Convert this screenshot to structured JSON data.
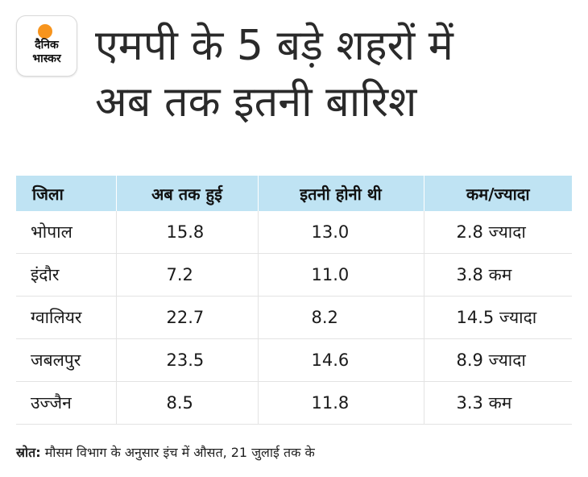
{
  "logo": {
    "line1": "दैनिक",
    "line2": "भास्कर",
    "accent_color": "#f7941d"
  },
  "title": {
    "line1": "एमपी के 5 बड़े शहरों में",
    "line2": "अब तक इतनी बारिश"
  },
  "table": {
    "header_bg": "#bfe3f3",
    "columns": [
      "जिला",
      "अब तक हुई",
      "इतनी होनी थी",
      "कम/ज्यादा"
    ],
    "rows": [
      [
        "भोपाल",
        "15.8",
        "13.0",
        "2.8 ज्यादा"
      ],
      [
        "इंदौर",
        "7.2",
        "11.0",
        "3.8 कम"
      ],
      [
        "ग्वालियर",
        "22.7",
        "8.2",
        "14.5 ज्यादा"
      ],
      [
        "जबलपुर",
        "23.5",
        "14.6",
        "8.9 ज्यादा"
      ],
      [
        "उज्जैन",
        "8.5",
        "11.8",
        "3.3 कम"
      ]
    ]
  },
  "source": {
    "label": "स्रोत:",
    "text": "मौसम विभाग के अनुसार इंच में औसत, 21 जुलाई तक के"
  }
}
